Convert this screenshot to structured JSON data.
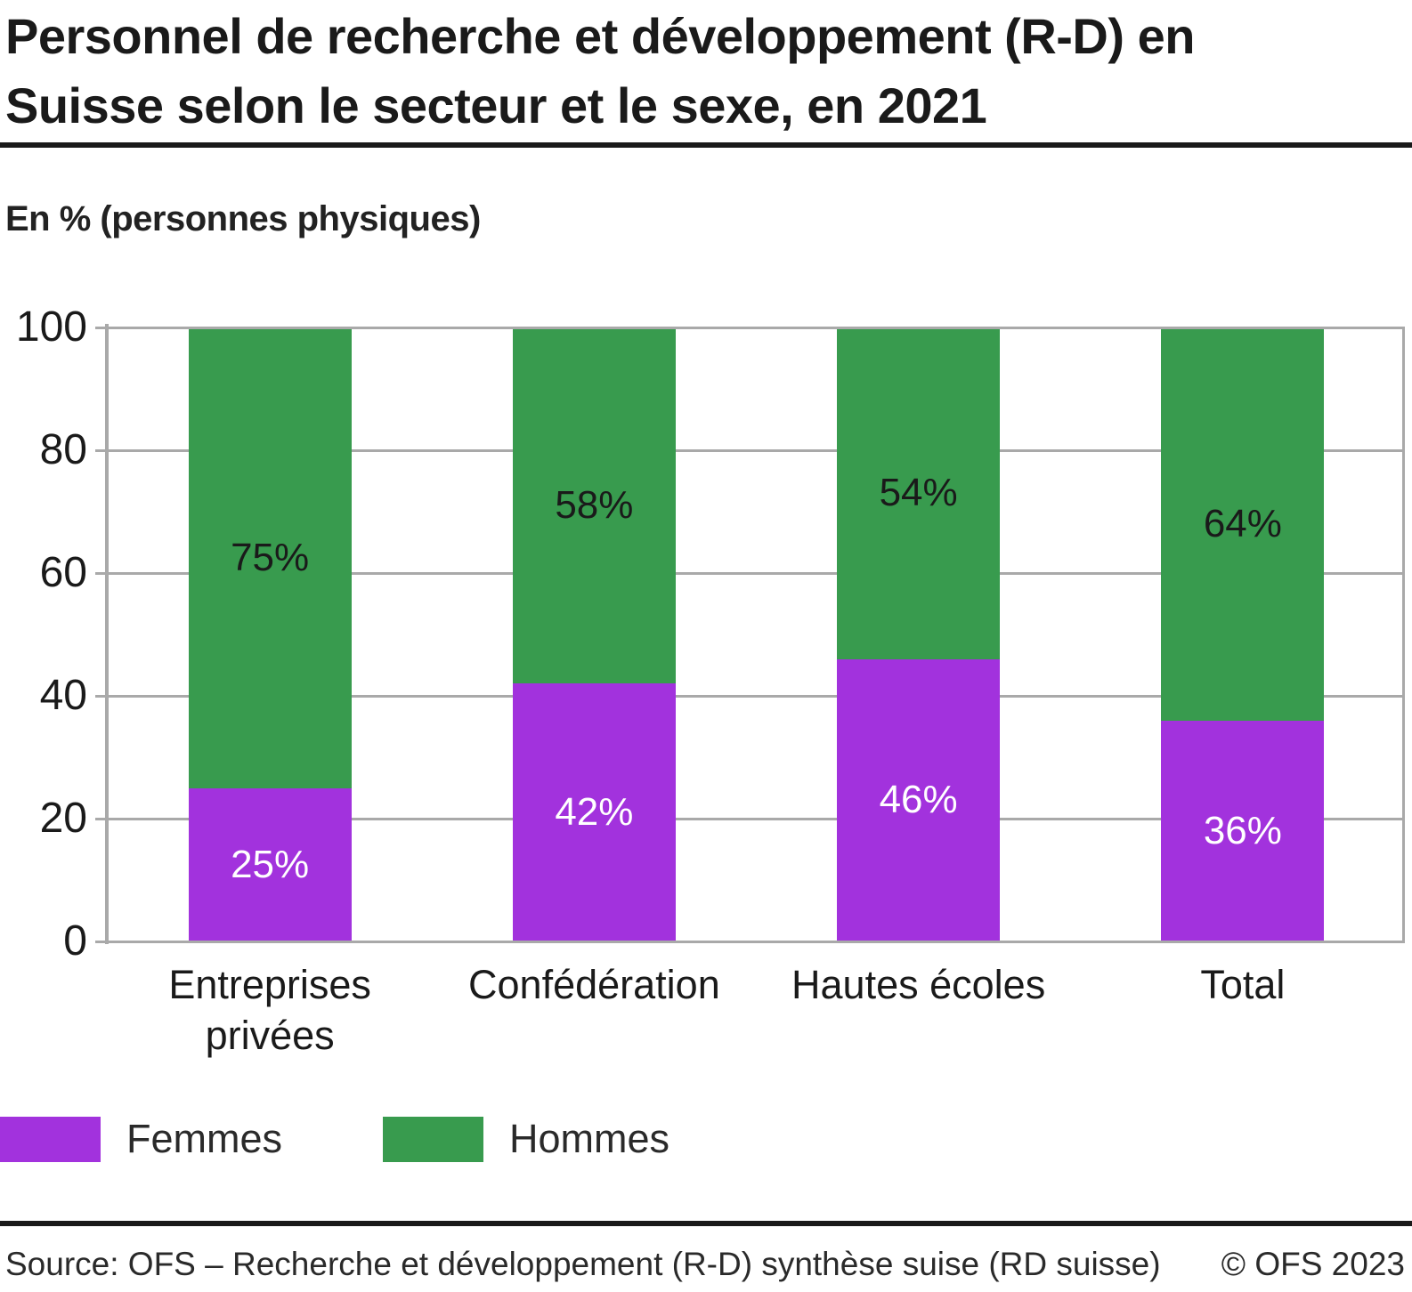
{
  "header": {
    "title_lines": [
      "Personnel de recherche et développement (R-D) en",
      "Suisse selon le secteur et le sexe, en 2021"
    ],
    "subtitle": "En % (personnes physiques)"
  },
  "chart_data": {
    "type": "bar",
    "stacked": true,
    "categories": [
      "Entreprises privées",
      "Confédération",
      "Hautes écoles",
      "Total"
    ],
    "series": [
      {
        "name": "Femmes",
        "color": "#a232dd",
        "label_color": "#ffffff",
        "values": [
          25,
          42,
          46,
          36
        ]
      },
      {
        "name": "Hommes",
        "color": "#389b4e",
        "label_color": "#1a1a1a",
        "values": [
          75,
          58,
          54,
          64
        ]
      }
    ],
    "value_suffix": "%",
    "ylim": [
      0,
      100
    ],
    "yticks": [
      0,
      20,
      40,
      60,
      80,
      100
    ],
    "grid": true,
    "gridline_color": "#a9a9a9",
    "legend_position": "bottom-left"
  },
  "footer": {
    "source": "Source: OFS – Recherche et développement (R-D) synthèse suise (RD suisse)",
    "copyright": "© OFS 2023"
  }
}
